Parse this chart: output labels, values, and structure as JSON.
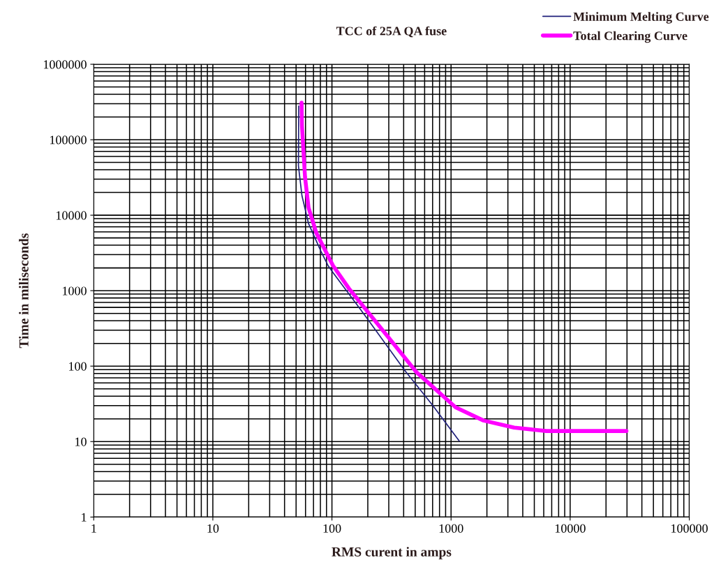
{
  "chart_data": {
    "type": "line",
    "title": "TCC of 25A QA fuse",
    "xlabel": "RMS curent in amps",
    "ylabel": "Time in miliseconds",
    "log": "xy",
    "grid": true,
    "legend": "top right",
    "xlim": [
      1,
      100000
    ],
    "xticks": [
      1,
      10,
      100,
      1000,
      10000,
      100000
    ],
    "ylim": [
      1,
      1000000
    ],
    "yticks": [
      1,
      10,
      100,
      1000,
      10000,
      100000,
      1000000
    ],
    "series": [
      {
        "name": "Minimum Melting Curve",
        "color": "#1f1f7a",
        "x": [
          52.6,
          52.3,
          56,
          63.6,
          81,
          92.7,
          102,
          200,
          408,
          700,
          1170
        ],
        "values": [
          280000,
          45400,
          18100,
          7740,
          3300,
          2150,
          1740,
          417,
          88,
          30.3,
          10.2
        ]
      },
      {
        "name": "Total Clearing Curve",
        "color": "#ff00ff",
        "x": [
          55.6,
          56,
          59.4,
          63.6,
          73.8,
          102,
          139,
          312,
          514,
          1093,
          1874,
          3390,
          6310,
          29700
        ],
        "values": [
          309000,
          153000,
          32300,
          12600,
          5860,
          2150,
          1066,
          220,
          82.6,
          28.4,
          19.0,
          15.3,
          13.8,
          13.8
        ]
      }
    ]
  }
}
